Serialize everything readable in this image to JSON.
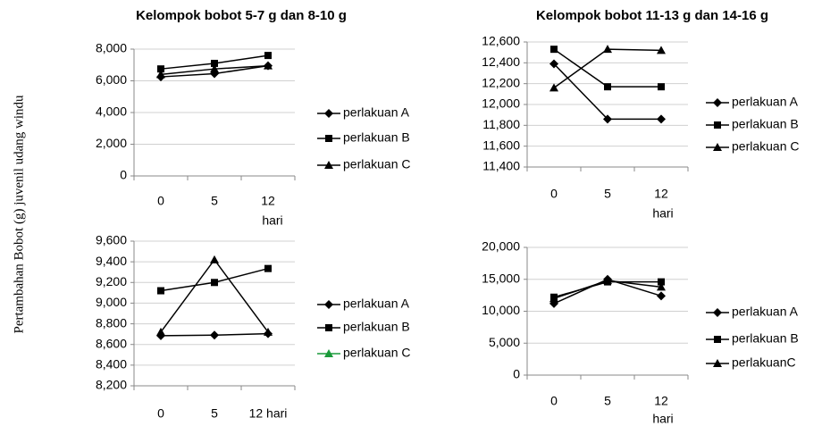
{
  "ylabel": "Pertambahan Bobot (g) juvenil udang windu",
  "chart_data": [
    {
      "type": "line",
      "title": "Kelompok bobot 5-7 g dan 8-10 g",
      "xlabel": "hari",
      "categories": [
        "0",
        "5",
        "12"
      ],
      "ylim": [
        0,
        8000
      ],
      "yticks": [
        0,
        {
          "value": 2000,
          "label": "2,000"
        },
        {
          "value": 4000,
          "label": "4,000"
        },
        {
          "value": 6000,
          "label": "6,000"
        },
        {
          "value": 8000,
          "label": "8,000"
        }
      ],
      "grid": true,
      "series": [
        {
          "name": "perlakuan A",
          "color": "#000000",
          "marker": "diamond",
          "values": [
            6250,
            6450,
            6950
          ]
        },
        {
          "name": "perlakuan B",
          "color": "#000000",
          "marker": "square",
          "values": [
            6750,
            7100,
            7600
          ]
        },
        {
          "name": "perlakuan C",
          "color": "#000000",
          "marker": "triangle",
          "values": [
            6400,
            6750,
            6950
          ]
        }
      ]
    },
    {
      "type": "line",
      "title": "Kelompok bobot 11-13 g dan 14-16 g",
      "xlabel": "hari",
      "categories": [
        "0",
        "5",
        "12"
      ],
      "ylim": [
        11400,
        12600
      ],
      "yticks": [
        {
          "value": 11400,
          "label": "11,400"
        },
        {
          "value": 11600,
          "label": "11,600"
        },
        {
          "value": 11800,
          "label": "11,800"
        },
        {
          "value": 12000,
          "label": "12,000"
        },
        {
          "value": 12200,
          "label": "12,200"
        },
        {
          "value": 12400,
          "label": "12,400"
        },
        {
          "value": 12600,
          "label": "12,600"
        }
      ],
      "grid": true,
      "series": [
        {
          "name": "perlakuan A",
          "color": "#000000",
          "marker": "diamond",
          "values": [
            12390,
            11860,
            11860
          ]
        },
        {
          "name": "perlakuan B",
          "color": "#000000",
          "marker": "square",
          "values": [
            12530,
            12170,
            12170
          ]
        },
        {
          "name": "perlakuan C",
          "color": "#000000",
          "marker": "triangle",
          "values": [
            12160,
            12530,
            12520
          ]
        }
      ]
    },
    {
      "type": "line",
      "categories": [
        "0",
        "5",
        "12 hari"
      ],
      "ylim": [
        8200,
        9600
      ],
      "yticks": [
        {
          "value": 8200,
          "label": "8,200"
        },
        {
          "value": 8400,
          "label": "8,400"
        },
        {
          "value": 8600,
          "label": "8,600"
        },
        {
          "value": 8800,
          "label": "8,800"
        },
        {
          "value": 9000,
          "label": "9,000"
        },
        {
          "value": 9200,
          "label": "9,200"
        },
        {
          "value": 9400,
          "label": "9,400"
        },
        {
          "value": 9600,
          "label": "9,600"
        }
      ],
      "grid": true,
      "series": [
        {
          "name": "perlakuan A",
          "color": "#000000",
          "marker": "diamond",
          "values": [
            8685,
            8690,
            8705
          ]
        },
        {
          "name": "perlakuan B",
          "color": "#000000",
          "marker": "square",
          "values": [
            9120,
            9200,
            9335
          ]
        },
        {
          "name": "perlakuan C",
          "color": "#000000",
          "legend_color": "#1a9a3a",
          "marker": "triangle",
          "values": [
            8720,
            9420,
            8720
          ]
        }
      ]
    },
    {
      "type": "line",
      "xlabel": "hari",
      "categories": [
        "0",
        "5",
        "12"
      ],
      "ylim": [
        0,
        20000
      ],
      "yticks": [
        0,
        {
          "value": 5000,
          "label": "5,000"
        },
        {
          "value": 10000,
          "label": "10,000"
        },
        {
          "value": 15000,
          "label": "15,000"
        },
        {
          "value": 20000,
          "label": "20,000"
        }
      ],
      "grid": true,
      "series": [
        {
          "name": "perlakuan A",
          "color": "#000000",
          "marker": "diamond",
          "values": [
            11200,
            15000,
            12400
          ]
        },
        {
          "name": "perlakuan B",
          "color": "#000000",
          "marker": "square",
          "values": [
            12200,
            14600,
            14600
          ]
        },
        {
          "name": "perlakuanC",
          "color": "#000000",
          "marker": "triangle",
          "values": [
            12000,
            14800,
            13800
          ]
        }
      ]
    }
  ]
}
